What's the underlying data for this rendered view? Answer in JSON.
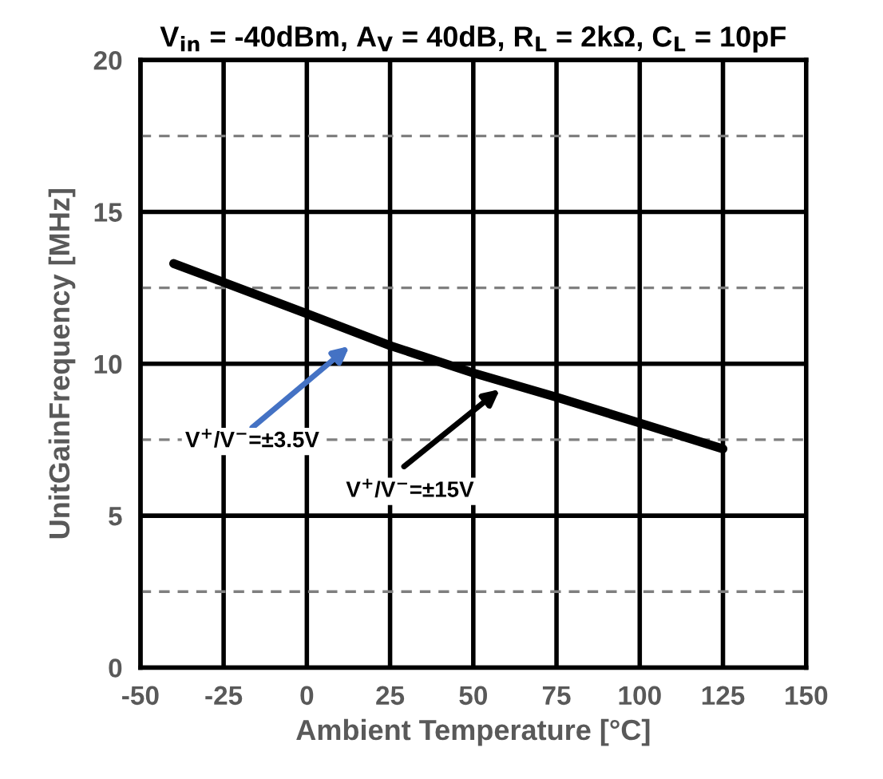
{
  "chart_data": {
    "type": "line",
    "title": "V$_{in}$ = -40dBm, A$_{V}$ = 40dB, R$_{L}$ = 2kΩ, C$_{L}$ = 10pF",
    "xlabel": "Ambient Temperature [°C]",
    "ylabel": "UnitGainFrequency [MHz]",
    "x": [
      -40,
      0,
      25,
      50,
      75,
      100,
      125
    ],
    "series": [
      {
        "color": "#000000",
        "values": [
          13.3,
          11.65,
          10.6,
          9.7,
          8.9,
          8.05,
          7.2
        ]
      }
    ],
    "xlim": [
      -50,
      150
    ],
    "xticks": [
      -50,
      -25,
      0,
      25,
      50,
      75,
      100,
      125,
      150
    ],
    "ylim": [
      0,
      20
    ],
    "yticks": [
      0,
      {
        "value": 2.5,
        "label": null
      },
      5,
      {
        "value": 7.5,
        "label": null
      },
      10,
      {
        "value": 12.5,
        "label": null
      },
      15,
      {
        "value": 17.5,
        "label": null
      },
      20
    ],
    "grid": true,
    "marker": "none",
    "line_style": "solid",
    "legend": false,
    "annotations": [
      "V$^{+}$/V$^{−}$=±3.5V",
      "V$^{+}$/V$^{−}$=±15V"
    ]
  }
}
